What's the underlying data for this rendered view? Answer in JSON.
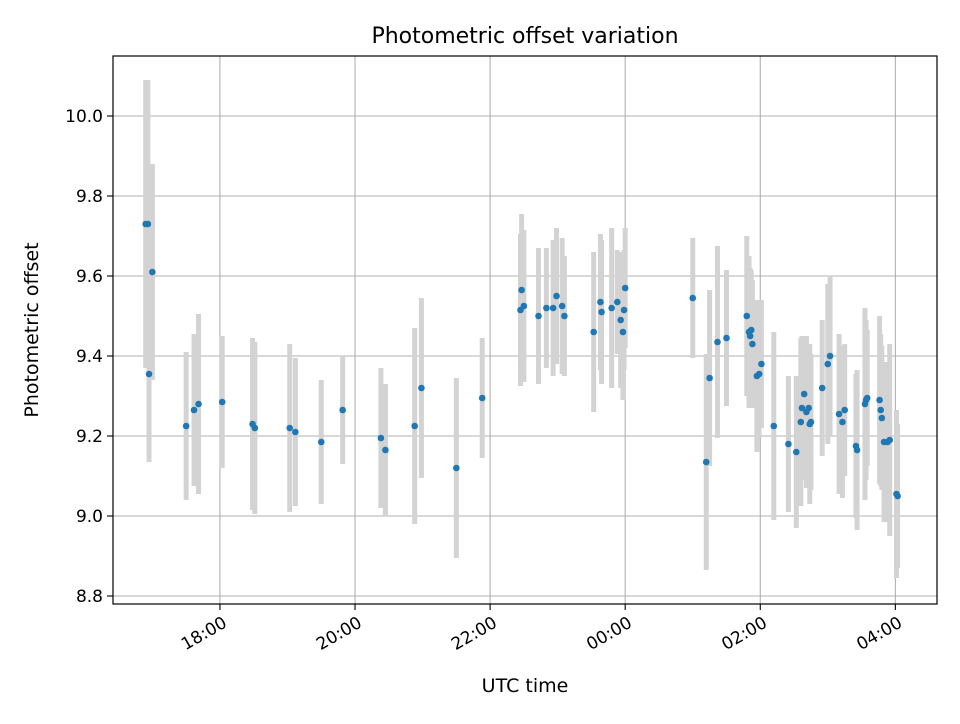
{
  "chart_data": {
    "type": "scatter",
    "title": "Photometric offset variation",
    "xlabel": "UTC time",
    "ylabel": "Photometric offset",
    "x_unit": "UTC time (HH:MM), observation night crossing midnight",
    "xlim": [
      "16:25",
      "04:37"
    ],
    "ylim": [
      8.78,
      10.15
    ],
    "x_ticks": [
      "18:00",
      "20:00",
      "22:00",
      "00:00",
      "02:00",
      "04:00"
    ],
    "y_ticks": [
      "8.8",
      "9.0",
      "9.2",
      "9.4",
      "9.6",
      "9.8",
      "10.0"
    ],
    "grid": true,
    "marker_color": "#1f77b4",
    "errorbar_color": "#d3d3d3",
    "points": [
      {
        "x": "16:54",
        "y": 9.73,
        "err": 0.36
      },
      {
        "x": "16:56",
        "y": 9.73,
        "err": 0.36
      },
      {
        "x": "16:57",
        "y": 9.355,
        "err": 0.22
      },
      {
        "x": "17:00",
        "y": 9.61,
        "err": 0.27
      },
      {
        "x": "17:30",
        "y": 9.225,
        "err": 0.185
      },
      {
        "x": "17:37",
        "y": 9.265,
        "err": 0.19
      },
      {
        "x": "17:41",
        "y": 9.28,
        "err": 0.225
      },
      {
        "x": "18:02",
        "y": 9.285,
        "err": 0.165
      },
      {
        "x": "18:29",
        "y": 9.23,
        "err": 0.215
      },
      {
        "x": "18:31",
        "y": 9.22,
        "err": 0.215
      },
      {
        "x": "19:02",
        "y": 9.22,
        "err": 0.21
      },
      {
        "x": "19:07",
        "y": 9.21,
        "err": 0.185
      },
      {
        "x": "19:30",
        "y": 9.185,
        "err": 0.155
      },
      {
        "x": "19:49",
        "y": 9.265,
        "err": 0.135
      },
      {
        "x": "20:23",
        "y": 9.195,
        "err": 0.175
      },
      {
        "x": "20:27",
        "y": 9.165,
        "err": 0.165
      },
      {
        "x": "20:53",
        "y": 9.225,
        "err": 0.245
      },
      {
        "x": "20:59",
        "y": 9.32,
        "err": 0.225
      },
      {
        "x": "21:30",
        "y": 9.12,
        "err": 0.225
      },
      {
        "x": "21:53",
        "y": 9.295,
        "err": 0.15
      },
      {
        "x": "22:27",
        "y": 9.515,
        "err": 0.19
      },
      {
        "x": "22:28",
        "y": 9.565,
        "err": 0.19
      },
      {
        "x": "22:30",
        "y": 9.525,
        "err": 0.19
      },
      {
        "x": "22:43",
        "y": 9.5,
        "err": 0.17
      },
      {
        "x": "22:50",
        "y": 9.52,
        "err": 0.15
      },
      {
        "x": "22:56",
        "y": 9.52,
        "err": 0.17
      },
      {
        "x": "22:59",
        "y": 9.55,
        "err": 0.17
      },
      {
        "x": "23:04",
        "y": 9.525,
        "err": 0.17
      },
      {
        "x": "23:06",
        "y": 9.5,
        "err": 0.15
      },
      {
        "x": "23:32",
        "y": 9.46,
        "err": 0.2
      },
      {
        "x": "23:38",
        "y": 9.535,
        "err": 0.17
      },
      {
        "x": "23:39",
        "y": 9.51,
        "err": 0.18
      },
      {
        "x": "23:48",
        "y": 9.52,
        "err": 0.2
      },
      {
        "x": "23:53",
        "y": 9.535,
        "err": 0.13
      },
      {
        "x": "23:56",
        "y": 9.49,
        "err": 0.17
      },
      {
        "x": "23:58",
        "y": 9.46,
        "err": 0.17
      },
      {
        "x": "23:59",
        "y": 9.515,
        "err": 0.15
      },
      {
        "x": "00:00",
        "y": 9.57,
        "err": 0.15
      },
      {
        "x": "01:00",
        "y": 9.545,
        "err": 0.15
      },
      {
        "x": "01:12",
        "y": 9.135,
        "err": 0.27
      },
      {
        "x": "01:15",
        "y": 9.345,
        "err": 0.22
      },
      {
        "x": "01:22",
        "y": 9.435,
        "err": 0.24
      },
      {
        "x": "01:30",
        "y": 9.445,
        "err": 0.17
      },
      {
        "x": "01:48",
        "y": 9.5,
        "err": 0.2
      },
      {
        "x": "01:50",
        "y": 9.46,
        "err": 0.19
      },
      {
        "x": "01:51",
        "y": 9.45,
        "err": 0.17
      },
      {
        "x": "01:52",
        "y": 9.465,
        "err": 0.15
      },
      {
        "x": "01:53",
        "y": 9.43,
        "err": 0.16
      },
      {
        "x": "01:57",
        "y": 9.35,
        "err": 0.19
      },
      {
        "x": "01:59",
        "y": 9.355,
        "err": 0.16
      },
      {
        "x": "02:01",
        "y": 9.38,
        "err": 0.16
      },
      {
        "x": "02:12",
        "y": 9.225,
        "err": 0.235
      },
      {
        "x": "02:25",
        "y": 9.18,
        "err": 0.17
      },
      {
        "x": "02:32",
        "y": 9.16,
        "err": 0.19
      },
      {
        "x": "02:36",
        "y": 9.235,
        "err": 0.21
      },
      {
        "x": "02:37",
        "y": 9.27,
        "err": 0.18
      },
      {
        "x": "02:39",
        "y": 9.305,
        "err": 0.145
      },
      {
        "x": "02:41",
        "y": 9.26,
        "err": 0.19
      },
      {
        "x": "02:43",
        "y": 9.27,
        "err": 0.16
      },
      {
        "x": "02:44",
        "y": 9.23,
        "err": 0.2
      },
      {
        "x": "02:45",
        "y": 9.235,
        "err": 0.17
      },
      {
        "x": "02:55",
        "y": 9.32,
        "err": 0.17
      },
      {
        "x": "03:00",
        "y": 9.38,
        "err": 0.2
      },
      {
        "x": "03:02",
        "y": 9.4,
        "err": 0.2
      },
      {
        "x": "03:10",
        "y": 9.255,
        "err": 0.2
      },
      {
        "x": "03:13",
        "y": 9.235,
        "err": 0.19
      },
      {
        "x": "03:15",
        "y": 9.265,
        "err": 0.165
      },
      {
        "x": "03:25",
        "y": 9.175,
        "err": 0.18
      },
      {
        "x": "03:26",
        "y": 9.165,
        "err": 0.2
      },
      {
        "x": "03:33",
        "y": 9.28,
        "err": 0.24
      },
      {
        "x": "03:34",
        "y": 9.29,
        "err": 0.2
      },
      {
        "x": "03:35",
        "y": 9.295,
        "err": 0.17
      },
      {
        "x": "03:46",
        "y": 9.29,
        "err": 0.21
      },
      {
        "x": "03:47",
        "y": 9.265,
        "err": 0.19
      },
      {
        "x": "03:48",
        "y": 9.245,
        "err": 0.18
      },
      {
        "x": "03:50",
        "y": 9.185,
        "err": 0.2
      },
      {
        "x": "03:53",
        "y": 9.185,
        "err": 0.2
      },
      {
        "x": "03:55",
        "y": 9.19,
        "err": 0.24
      },
      {
        "x": "04:01",
        "y": 9.055,
        "err": 0.21
      },
      {
        "x": "04:02",
        "y": 9.05,
        "err": 0.18
      }
    ]
  }
}
